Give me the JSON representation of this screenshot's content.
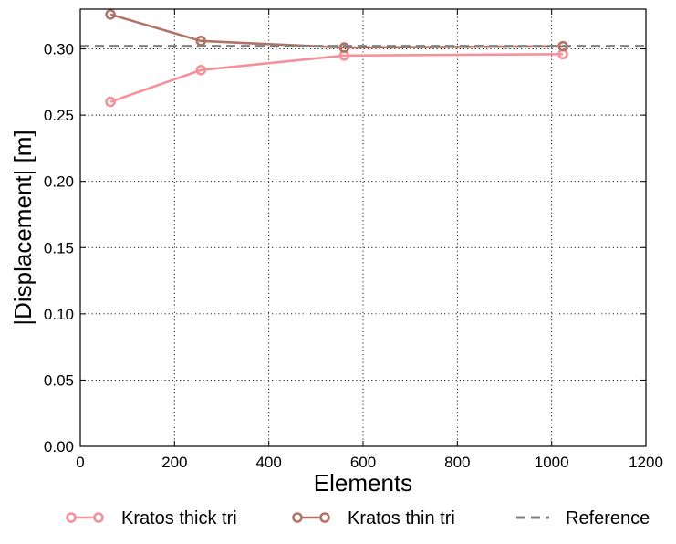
{
  "chart_data": {
    "type": "line",
    "title": "",
    "xlabel": "Elements",
    "ylabel": "|Displacement| [m]",
    "xlim": [
      0,
      1200
    ],
    "ylim": [
      0,
      0.33
    ],
    "xticks": [
      0,
      200,
      400,
      600,
      800,
      1000,
      1200
    ],
    "xtick_labels": [
      "0",
      "200",
      "400",
      "600",
      "800",
      "1000",
      "1200"
    ],
    "yticks": [
      0.0,
      0.05,
      0.1,
      0.15,
      0.2,
      0.25,
      0.3
    ],
    "ytick_labels": [
      "0.00",
      "0.05",
      "0.10",
      "0.15",
      "0.20",
      "0.25",
      "0.30"
    ],
    "grid": true,
    "legend_position": "bottom",
    "series": [
      {
        "name": "Kratos thick tri",
        "color": "#f4919c",
        "style": "line-marker",
        "x": [
          64,
          256,
          560,
          1024
        ],
        "y": [
          0.26,
          0.284,
          0.295,
          0.296
        ]
      },
      {
        "name": "Kratos thin tri",
        "color": "#b37468",
        "style": "line-marker",
        "x": [
          64,
          256,
          560,
          1024
        ],
        "y": [
          0.326,
          0.306,
          0.301,
          0.302
        ]
      },
      {
        "name": "Reference",
        "color": "#808080",
        "style": "dashed",
        "y": 0.302
      }
    ]
  }
}
